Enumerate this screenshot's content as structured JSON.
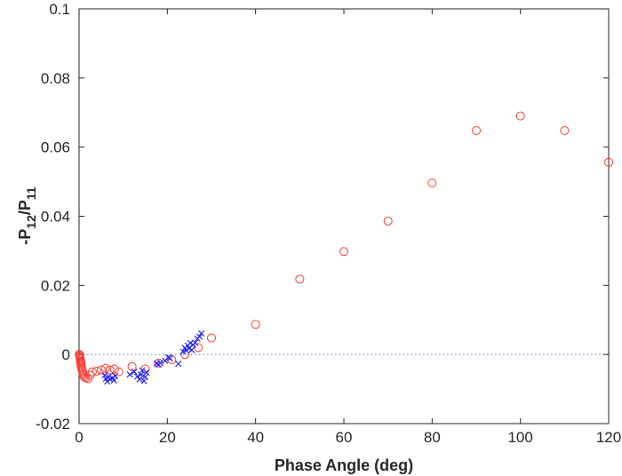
{
  "chart_data": {
    "type": "scatter",
    "title": "",
    "xlabel": "Phase Angle (deg)",
    "ylabel": {
      "main": "-P",
      "sub1": "12",
      "mid": "/P",
      "sub2": "11"
    },
    "xlim": [
      0,
      120
    ],
    "ylim": [
      -0.02,
      0.1
    ],
    "x_ticks": [
      0,
      20,
      40,
      60,
      80,
      100,
      120
    ],
    "y_ticks": [
      -0.02,
      0,
      0.02,
      0.04,
      0.06,
      0.08,
      0.1
    ],
    "x_tick_labels": [
      "0",
      "20",
      "40",
      "60",
      "80",
      "100",
      "120"
    ],
    "y_tick_labels": [
      "-0.02",
      "0",
      "0.02",
      "0.04",
      "0.06",
      "0.08",
      "0.1"
    ],
    "grid": false,
    "reference_line": {
      "y": 0,
      "style": "dotted",
      "color": "#4a90e2"
    },
    "series": [
      {
        "marker": "circle",
        "color": "#ff3b30",
        "points": [
          [
            0.05,
            0.0
          ],
          [
            0.1,
            -0.0002
          ],
          [
            0.15,
            -0.0005
          ],
          [
            0.2,
            -0.0008
          ],
          [
            0.25,
            -0.0012
          ],
          [
            0.3,
            -0.0016
          ],
          [
            0.35,
            -0.002
          ],
          [
            0.4,
            -0.0025
          ],
          [
            0.45,
            -0.003
          ],
          [
            0.5,
            -0.0035
          ],
          [
            0.6,
            -0.004
          ],
          [
            0.7,
            -0.0045
          ],
          [
            0.8,
            -0.005
          ],
          [
            0.9,
            -0.0055
          ],
          [
            1.0,
            -0.006
          ],
          [
            1.2,
            -0.0065
          ],
          [
            1.5,
            -0.0068
          ],
          [
            2.0,
            -0.007
          ],
          [
            2.5,
            -0.006
          ],
          [
            3.0,
            -0.005
          ],
          [
            4.0,
            -0.0048
          ],
          [
            5.0,
            -0.0045
          ],
          [
            6.0,
            -0.004
          ],
          [
            7.0,
            -0.0045
          ],
          [
            8.0,
            -0.0042
          ],
          [
            9.0,
            -0.005
          ],
          [
            12.0,
            -0.0035
          ],
          [
            15.0,
            -0.0042
          ],
          [
            18.0,
            -0.0025
          ],
          [
            21.0,
            -0.0015
          ],
          [
            24.0,
            0.0
          ],
          [
            27.0,
            0.002
          ],
          [
            30.0,
            0.0048
          ],
          [
            40.0,
            0.0087
          ],
          [
            50.0,
            0.0218
          ],
          [
            60.0,
            0.0298
          ],
          [
            70.0,
            0.0386
          ],
          [
            80.0,
            0.0496
          ],
          [
            90.0,
            0.0648
          ],
          [
            100.0,
            0.069
          ],
          [
            110.0,
            0.0648
          ],
          [
            120.0,
            0.0556
          ]
        ]
      },
      {
        "marker": "x",
        "color": "#1a1aff",
        "points": [
          [
            5.8,
            -0.006
          ],
          [
            6.1,
            -0.007
          ],
          [
            6.4,
            -0.0078
          ],
          [
            6.7,
            -0.0064
          ],
          [
            7.0,
            -0.0071
          ],
          [
            7.6,
            -0.0068
          ],
          [
            7.9,
            -0.0075
          ],
          [
            8.2,
            -0.0062
          ],
          [
            11.5,
            -0.0058
          ],
          [
            12.5,
            -0.005
          ],
          [
            13.2,
            -0.0064
          ],
          [
            13.7,
            -0.0072
          ],
          [
            14.0,
            -0.0058
          ],
          [
            14.3,
            -0.0046
          ],
          [
            14.7,
            -0.0077
          ],
          [
            15.0,
            -0.0065
          ],
          [
            15.3,
            -0.0052
          ],
          [
            17.6,
            -0.0026
          ],
          [
            18.0,
            -0.0029
          ],
          [
            18.4,
            -0.0024
          ],
          [
            19.5,
            -0.0018
          ],
          [
            20.2,
            -0.0008
          ],
          [
            20.6,
            -0.0011
          ],
          [
            22.5,
            -0.0027
          ],
          [
            23.6,
            0.0008
          ],
          [
            24.0,
            0.0019
          ],
          [
            24.3,
            0.0012
          ],
          [
            24.6,
            0.0026
          ],
          [
            24.9,
            0.0018
          ],
          [
            25.2,
            0.0033
          ],
          [
            25.5,
            0.0013
          ],
          [
            25.8,
            0.0028
          ],
          [
            26.3,
            0.0034
          ],
          [
            26.8,
            0.0046
          ],
          [
            27.3,
            0.0052
          ],
          [
            27.7,
            0.0061
          ]
        ]
      }
    ]
  }
}
